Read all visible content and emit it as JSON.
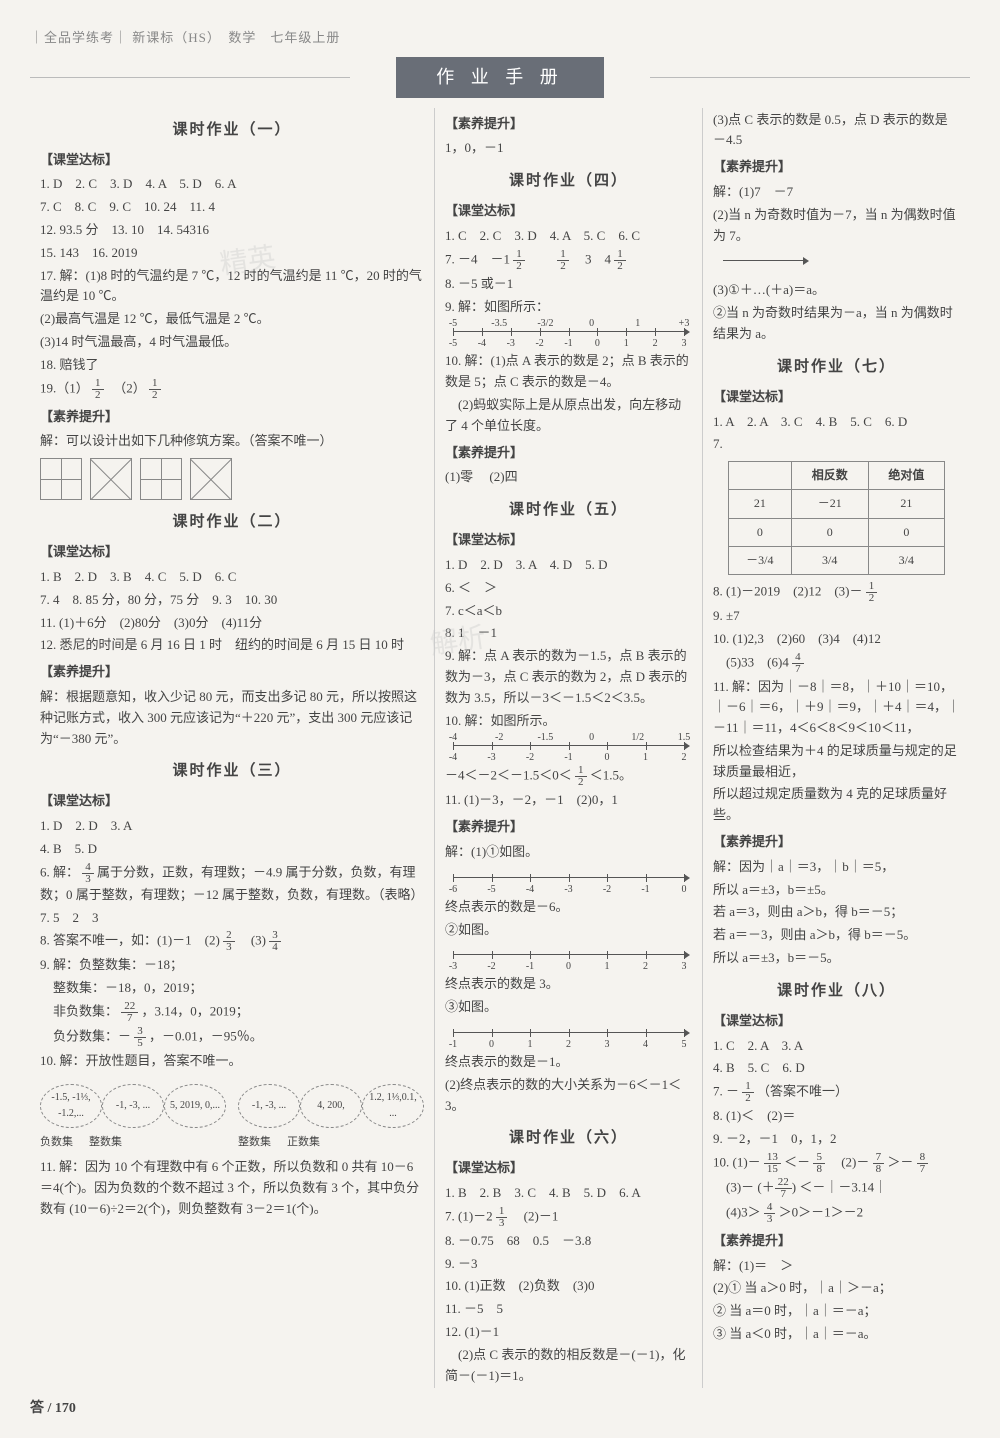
{
  "header": {
    "series": "｜全品学练考｜",
    "sub": "新课标（HS）　数学　七年级上册"
  },
  "banner": "作 业 手 册",
  "page_num": "答 / 170",
  "watermarks": [
    "精英",
    "解析"
  ],
  "col1": {
    "s1": {
      "title": "课时作业（一）",
      "ktdb": "【课堂达标】",
      "l1": "1. D　2. C　3. D　4. A　5. D　6. A",
      "l2": "7. C　8. C　9. C　10. 24　11. 4",
      "l3": "12. 93.5 分　13. 10　14. 54316",
      "l4": "15. 143　16. 2019",
      "l5": "17. 解：(1)8 时的气温约是 7 ℃，12 时的气温约是 11 ℃，20 时的气温约是 10 ℃。",
      "l6": "(2)最高气温是 12 ℃，最低气温是 2 ℃。",
      "l7": "(3)14 时气温最高，4 时气温最低。",
      "l8": "18. 赔钱了",
      "l9a": "19.（1）",
      "l9b": "　（2）",
      "syts": "【素养提升】",
      "l10": "解：可以设计出如下几种修筑方案。（答案不唯一）"
    },
    "s2": {
      "title": "课时作业（二）",
      "ktdb": "【课堂达标】",
      "l1": "1. B　2. D　3. B　4. C　5. D　6. C",
      "l2": "7. 4　8. 85 分，80 分，75 分　9. 3　10. 30",
      "l3": "11. (1)＋6分　(2)80分　(3)0分　(4)11分",
      "l4": "12. 悉尼的时间是 6 月 16 日 1 时　纽约的时间是 6 月 15 日 10 时",
      "syts": "【素养提升】",
      "l5": "解：根据题意知，收入少记 80 元，而支出多记 80 元，所以按照这种记账方式，收入 300 元应该记为“＋220 元”，支出 300 元应该记为“－380 元”。"
    },
    "s3": {
      "title": "课时作业（三）",
      "ktdb": "【课堂达标】",
      "l1": "1. D　2. D　3. A",
      "l2": "4. B　5. D",
      "l3a": "6. 解：",
      "l3b": " 属于分数，正数，有理数；－4.9 属于分数，负数，有理数；0 属于整数，有理数；－12 属于整数，负数，有理数。（表略）",
      "l4": "7. 5　2　3",
      "l5a": "8. 答案不唯一，如：(1)－1　(2)",
      "l5b": "　(3)",
      "l6": "9. 解：负整数集：－18；",
      "l7": "　整数集：－18，0，2019；",
      "l8a": "　非负数集：",
      "l8b": "，3.14，0，2019；",
      "l9a": "　负分数集：－",
      "l9b": "，－0.01，－95％。",
      "l10": "10. 解：开放性题目，答案不唯一。",
      "ov": [
        [
          "-1.5,\n-1⅓,\n-1.2,...",
          "-1,\n-3,\n...",
          "5,\n2019,\n0,..."
        ],
        [
          "-1,\n-3,\n...",
          "4,\n200,",
          "1.2,\n1⅓,0.1,\n..."
        ]
      ],
      "ovl": [
        "负数集",
        "整数集",
        "",
        "整数集",
        "正数集"
      ],
      "l11": "11. 解：因为 10 个有理数中有 6 个正数，所以负数和 0 共有 10－6＝4(个)。因为负数的个数不超过 3 个，所以负数有 3 个，其中负分数有 (10－6)÷2＝2(个)，则负整数有 3－2＝1(个)。"
    }
  },
  "col2": {
    "pre": {
      "syts": "【素养提升】",
      "l": "1，0，－1"
    },
    "s4": {
      "title": "课时作业（四）",
      "ktdb": "【课堂达标】",
      "l1": "1. C　2. C　3. D　4. A　5. C　6. C",
      "l2a": "7. －4　－1",
      "l2b": "　　",
      "l2c": "　3　4",
      "l3": "8. －5 或－1",
      "l4": "9. 解：如图所示：",
      "nl1": {
        "ticks": [
          -5,
          -4,
          -3,
          -2,
          -1,
          0,
          1,
          2,
          3
        ],
        "upper": [
          "-5",
          "-3.5",
          "-3/2",
          "0",
          "1",
          "+3"
        ]
      },
      "l5": "10. 解：(1)点 A 表示的数是 2；点 B 表示的数是 5；点 C 表示的数是－4。",
      "l6": "　(2)蚂蚁实际上是从原点出发，向左移动了 4 个单位长度。",
      "syts": "【素养提升】",
      "l7": "(1)零 　(2)四"
    },
    "s5": {
      "title": "课时作业（五）",
      "ktdb": "【课堂达标】",
      "l1": "1. D　2. D　3. A　4. D　5. D",
      "l2": "6. ＜　＞",
      "l3": "7. c＜a＜b",
      "l4": "8. 1　－1",
      "l5": "9. 解：点 A 表示的数为－1.5，点 B 表示的数为－3，点 C 表示的数为 2，点 D 表示的数为 3.5，所以－3＜－1.5＜2＜3.5。",
      "l6": "10. 解：如图所示。",
      "nl2": {
        "ticks": [
          -4,
          -3,
          -2,
          -1,
          0,
          1,
          2
        ],
        "upper": [
          "-4",
          "-2",
          "-1.5",
          "0",
          "1/2",
          "1.5"
        ]
      },
      "l7a": "－4＜－2＜－1.5＜0＜",
      "l7b": "＜1.5。",
      "l8": "11. (1)－3，－2，－1　(2)0，1",
      "syts": "【素养提升】",
      "l9": "解：(1)①如图。",
      "nl3": {
        "ticks": [
          -6,
          -5,
          -4,
          -3,
          -2,
          -1,
          0
        ]
      },
      "l10": "终点表示的数是－6。",
      "l11": "②如图。",
      "nl4": {
        "ticks": [
          -3,
          -2,
          -1,
          0,
          1,
          2,
          3
        ]
      },
      "l12": "终点表示的数是 3。",
      "l13": "③如图。",
      "nl5": {
        "ticks": [
          -1,
          0,
          1,
          2,
          3,
          4,
          5
        ]
      },
      "l14": "终点表示的数是－1。",
      "l15": "(2)终点表示的数的大小关系为－6＜－1＜3。"
    },
    "s6": {
      "title": "课时作业（六）",
      "ktdb": "【课堂达标】",
      "l1": "1. B　2. B　3. C　4. B　5. D　6. A",
      "l2a": "7. (1)－2",
      "l2b": "　(2)－1",
      "l3": "8. －0.75　68　0.5　－3.8",
      "l4": "9. －3",
      "l5": "10. (1)正数　(2)负数　(3)0",
      "l6": "11. －5　5",
      "l7": "12. (1)－1",
      "l8": "　(2)点 C 表示的数的相反数是－(－1)，化简－(－1)＝1。"
    }
  },
  "col3": {
    "pre": {
      "l1": "(3)点 C 表示的数是 0.5，点 D 表示的数是－4.5",
      "syts": "【素养提升】",
      "l2": "解：(1)7　－7",
      "l3": "(2)当 n 为奇数时值为－7，当 n 为偶数时值为 7。",
      "l4": "(3)①＋…(＋a)＝a。",
      "l5": "②当 n 为奇数时结果为－a，当 n 为偶数时结果为 a。"
    },
    "s7": {
      "title": "课时作业（七）",
      "ktdb": "【课堂达标】",
      "l1": "1. A　2. A　3. C　4. B　5. C　6. D",
      "l2": "7.",
      "table": {
        "headers": [
          "",
          "相反数",
          "绝对值"
        ],
        "rows": [
          [
            "21",
            "－21",
            "21"
          ],
          [
            "0",
            "0",
            "0"
          ],
          [
            "－3/4",
            "3/4",
            "3/4"
          ]
        ]
      },
      "l3a": "8. (1)－2019　(2)12　(3)－",
      "l4": "9. ±7",
      "l5": "10. (1)2,3　(2)60　(3)4　(4)12",
      "l6a": "　(5)33　(6)4",
      "l7": "11. 解：因为｜－8｜＝8，｜＋10｜＝10，｜－6｜＝6，｜＋9｜＝9，｜＋4｜＝4，｜－11｜＝11，4＜6＜8＜9＜10＜11，",
      "l8": "所以检查结果为＋4 的足球质量与规定的足球质量最相近，",
      "l9": "所以超过规定质量数为 4 克的足球质量好些。",
      "syts": "【素养提升】",
      "l10": "解：因为｜a｜＝3，｜b｜＝5，",
      "l11": "所以 a＝±3，b＝±5。",
      "l12": "若 a＝3，则由 a＞b，得 b＝－5；",
      "l13": "若 a＝－3，则由 a＞b，得 b＝－5。",
      "l14": "所以 a＝±3，b＝－5。"
    },
    "s8": {
      "title": "课时作业（八）",
      "ktdb": "【课堂达标】",
      "l1": "1. C　2. A　3. A",
      "l2": "4. B　5. C　6. D",
      "l3a": "7. －",
      "l3b": "（答案不唯一）",
      "l4": "8. (1)＜　(2)＝",
      "l5": "9. －2，－1　0，1，2",
      "l6a": "10. (1)－",
      "l6b": "＜－",
      "l6c": "　(2)－",
      "l6d": "＞－",
      "l7a": "　(3)－",
      "l7b": "＜－｜－3.14｜",
      "l8a": "　(4)3＞",
      "l8b": "＞0＞－1＞－2",
      "syts": "【素养提升】",
      "l9": "解：(1)＝　＞",
      "l10": "(2)① 当 a＞0 时，｜a｜＞－a；",
      "l11": "② 当 a＝0 时，｜a｜＝－a；",
      "l12": "③ 当 a＜0 时，｜a｜＝－a。"
    }
  }
}
